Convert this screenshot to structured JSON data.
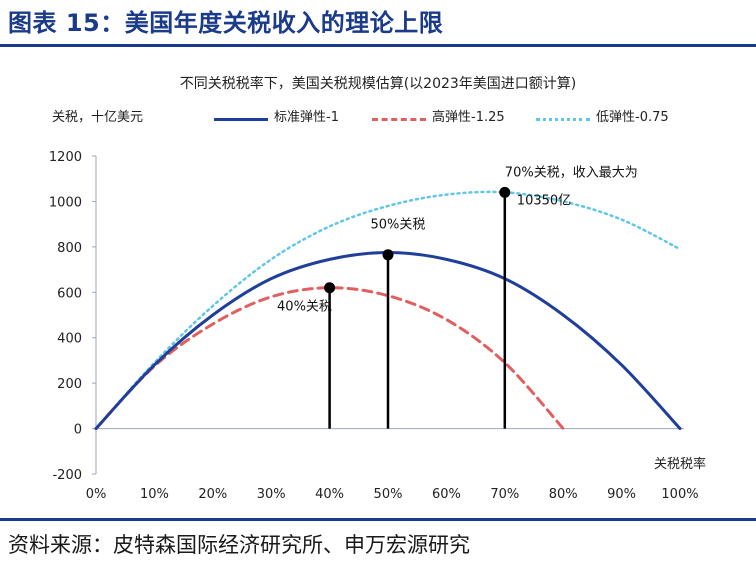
{
  "figure_heading": "图表 15：美国年度关税收入的理论上限",
  "source_note": "资料来源：皮特森国际经济研究所、申万宏源研究",
  "colors": {
    "heading": "#1a3a8a",
    "series_standard": "#1f3f9a",
    "series_high": "#e06060",
    "series_low": "#62c6e6",
    "axis": "#9aa8c0",
    "marker": "#000000"
  },
  "chart_data": {
    "type": "line",
    "title": "不同关税税率下，美国关税规模估算(以2023年美国进口额计算)",
    "ylabel": "关税，十亿美元",
    "xlabel": "关税税率",
    "ylim": [
      -200,
      1200
    ],
    "xlim": [
      0,
      1
    ],
    "grid": false,
    "legend": "top",
    "y_ticks": [
      "1200",
      "1000",
      "800",
      "600",
      "400",
      "200",
      "0",
      "-200"
    ],
    "y_tick_values": [
      1200,
      1000,
      800,
      600,
      400,
      200,
      0,
      -200
    ],
    "x_ticks": [
      "0%",
      "10%",
      "20%",
      "30%",
      "40%",
      "50%",
      "60%",
      "70%",
      "80%",
      "90%",
      "100%"
    ],
    "x_tick_values": [
      0,
      0.1,
      0.2,
      0.3,
      0.4,
      0.5,
      0.6,
      0.7,
      0.8,
      0.9,
      1.0
    ],
    "series": [
      {
        "name": "标准弹性-1",
        "style": "solid",
        "x": [
          0,
          0.1,
          0.2,
          0.3,
          0.4,
          0.5,
          0.6,
          0.7,
          0.8,
          0.9,
          1.0
        ],
        "values": [
          0,
          280,
          500,
          660,
          745,
          775,
          745,
          660,
          500,
          280,
          0
        ]
      },
      {
        "name": "高弹性-1.25",
        "style": "dashed",
        "x": [
          0,
          0.1,
          0.2,
          0.3,
          0.4,
          0.5,
          0.6,
          0.7,
          0.8
        ],
        "values": [
          0,
          275,
          460,
          580,
          620,
          585,
          480,
          290,
          0
        ]
      },
      {
        "name": "低弹性-0.75",
        "style": "dotted",
        "x": [
          0,
          0.1,
          0.2,
          0.3,
          0.4,
          0.5,
          0.6,
          0.7,
          0.8,
          0.9,
          1.0
        ],
        "values": [
          0,
          290,
          540,
          745,
          890,
          980,
          1030,
          1040,
          1000,
          920,
          790
        ]
      }
    ],
    "annotations": [
      {
        "x": 0.4,
        "y": 620,
        "text": "40%关税",
        "text_x": 0.31,
        "text_y": 520,
        "text2": ""
      },
      {
        "x": 0.5,
        "y": 765,
        "text": "50%关税",
        "text_x": 0.47,
        "text_y": 880,
        "text2": ""
      },
      {
        "x": 0.7,
        "y": 1040,
        "text": "70%关税，收入最大为",
        "text_x": 0.7,
        "text_y": 1110,
        "text2": "10350亿"
      }
    ]
  }
}
